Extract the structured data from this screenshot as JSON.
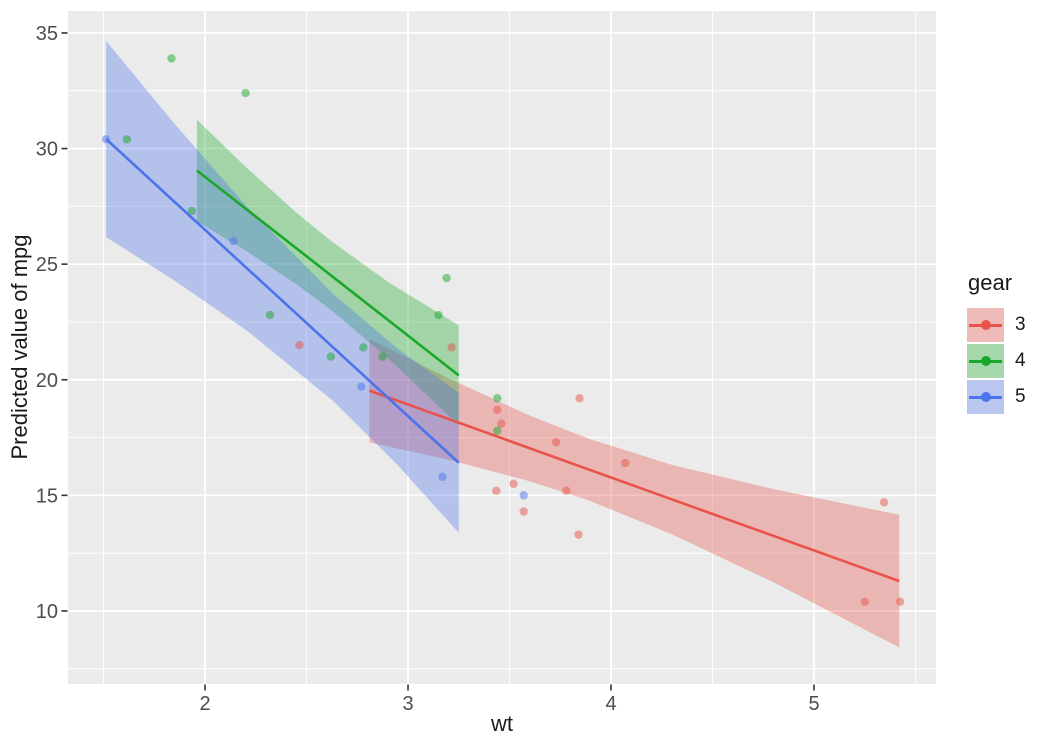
{
  "chart_data": {
    "type": "scatter",
    "title": "",
    "xlabel": "wt",
    "ylabel": "Predicted value of mpg",
    "xlim": [
      1.325,
      5.601
    ],
    "ylim": [
      6.84,
      35.95
    ],
    "x_ticks": [
      2,
      3,
      4,
      5
    ],
    "x_minor_ticks": [
      1.5,
      2.5,
      3.5,
      4.5,
      5.5
    ],
    "y_ticks": [
      10,
      15,
      20,
      25,
      30,
      35
    ],
    "y_minor_ticks": [
      7.5,
      12.5,
      17.5,
      22.5,
      27.5,
      32.5
    ],
    "grid": true,
    "panel_bg": "#EBEBEB",
    "grid_color": "#FFFFFF",
    "tick_color": "#333333",
    "tick_label_color": "#4D4D4D",
    "legend": {
      "title": "gear",
      "position": "right",
      "entries": [
        {
          "label": "3"
        },
        {
          "label": "4"
        },
        {
          "label": "5"
        }
      ]
    },
    "series": [
      {
        "name": "3",
        "color": "#E8544B",
        "key_bg": "#EFBBB8",
        "fill_opacity": 0.35,
        "point_opacity": 0.5,
        "line": {
          "x": [
            2.81,
            5.42
          ],
          "y": [
            19.53,
            11.29
          ]
        },
        "band": {
          "x": [
            2.81,
            3.2,
            3.6,
            3.89,
            4.3,
            4.8,
            5.42
          ],
          "hi": [
            21.77,
            20.06,
            18.45,
            17.45,
            16.32,
            15.27,
            14.16
          ],
          "lo": [
            17.29,
            16.54,
            15.61,
            14.78,
            13.32,
            11.24,
            8.42
          ]
        },
        "points": [
          [
            2.465,
            21.5
          ],
          [
            3.215,
            21.4
          ],
          [
            3.44,
            18.7
          ],
          [
            3.46,
            18.1
          ],
          [
            3.52,
            15.5
          ],
          [
            3.435,
            15.2
          ],
          [
            3.57,
            14.3
          ],
          [
            3.73,
            17.3
          ],
          [
            3.78,
            15.2
          ],
          [
            3.84,
            13.3
          ],
          [
            3.845,
            19.2
          ],
          [
            4.07,
            16.4
          ],
          [
            5.25,
            10.4
          ],
          [
            5.345,
            14.7
          ],
          [
            5.424,
            10.4
          ]
        ]
      },
      {
        "name": "4",
        "color": "#1AA82B",
        "key_bg": "#A6D8AC",
        "fill_opacity": 0.35,
        "point_opacity": 0.5,
        "line": {
          "x": [
            1.96,
            3.25
          ],
          "y": [
            29.05,
            20.19
          ]
        },
        "band": {
          "x": [
            1.96,
            2.2,
            2.45,
            2.62,
            2.9,
            3.25
          ],
          "hi": [
            31.25,
            29.21,
            27.23,
            26.01,
            24.24,
            22.35
          ],
          "lo": [
            26.85,
            25.59,
            24.13,
            23.03,
            20.94,
            18.03
          ]
        },
        "points": [
          [
            1.615,
            30.4
          ],
          [
            1.835,
            33.9
          ],
          [
            1.935,
            27.3
          ],
          [
            2.2,
            32.4
          ],
          [
            2.32,
            22.8
          ],
          [
            2.62,
            21.0
          ],
          [
            2.78,
            21.4
          ],
          [
            2.875,
            21.0
          ],
          [
            3.15,
            22.8
          ],
          [
            3.19,
            24.4
          ],
          [
            3.44,
            19.2
          ],
          [
            3.44,
            17.8
          ]
        ]
      },
      {
        "name": "5",
        "color": "#4B73EB",
        "key_bg": "#B8C6F0",
        "fill_opacity": 0.35,
        "point_opacity": 0.5,
        "line": {
          "x": [
            1.513,
            3.25
          ],
          "y": [
            30.41,
            16.41
          ]
        },
        "band": {
          "x": [
            1.513,
            1.85,
            2.2,
            2.63,
            2.95,
            3.25
          ],
          "hi": [
            34.65,
            31.07,
            27.55,
            23.72,
            21.34,
            19.44
          ],
          "lo": [
            26.17,
            24.29,
            22.17,
            19.09,
            16.3,
            13.38
          ]
        },
        "points": [
          [
            1.513,
            30.4
          ],
          [
            2.14,
            26.0
          ],
          [
            2.77,
            19.7
          ],
          [
            3.17,
            15.8
          ],
          [
            3.57,
            15.0
          ]
        ]
      }
    ]
  }
}
